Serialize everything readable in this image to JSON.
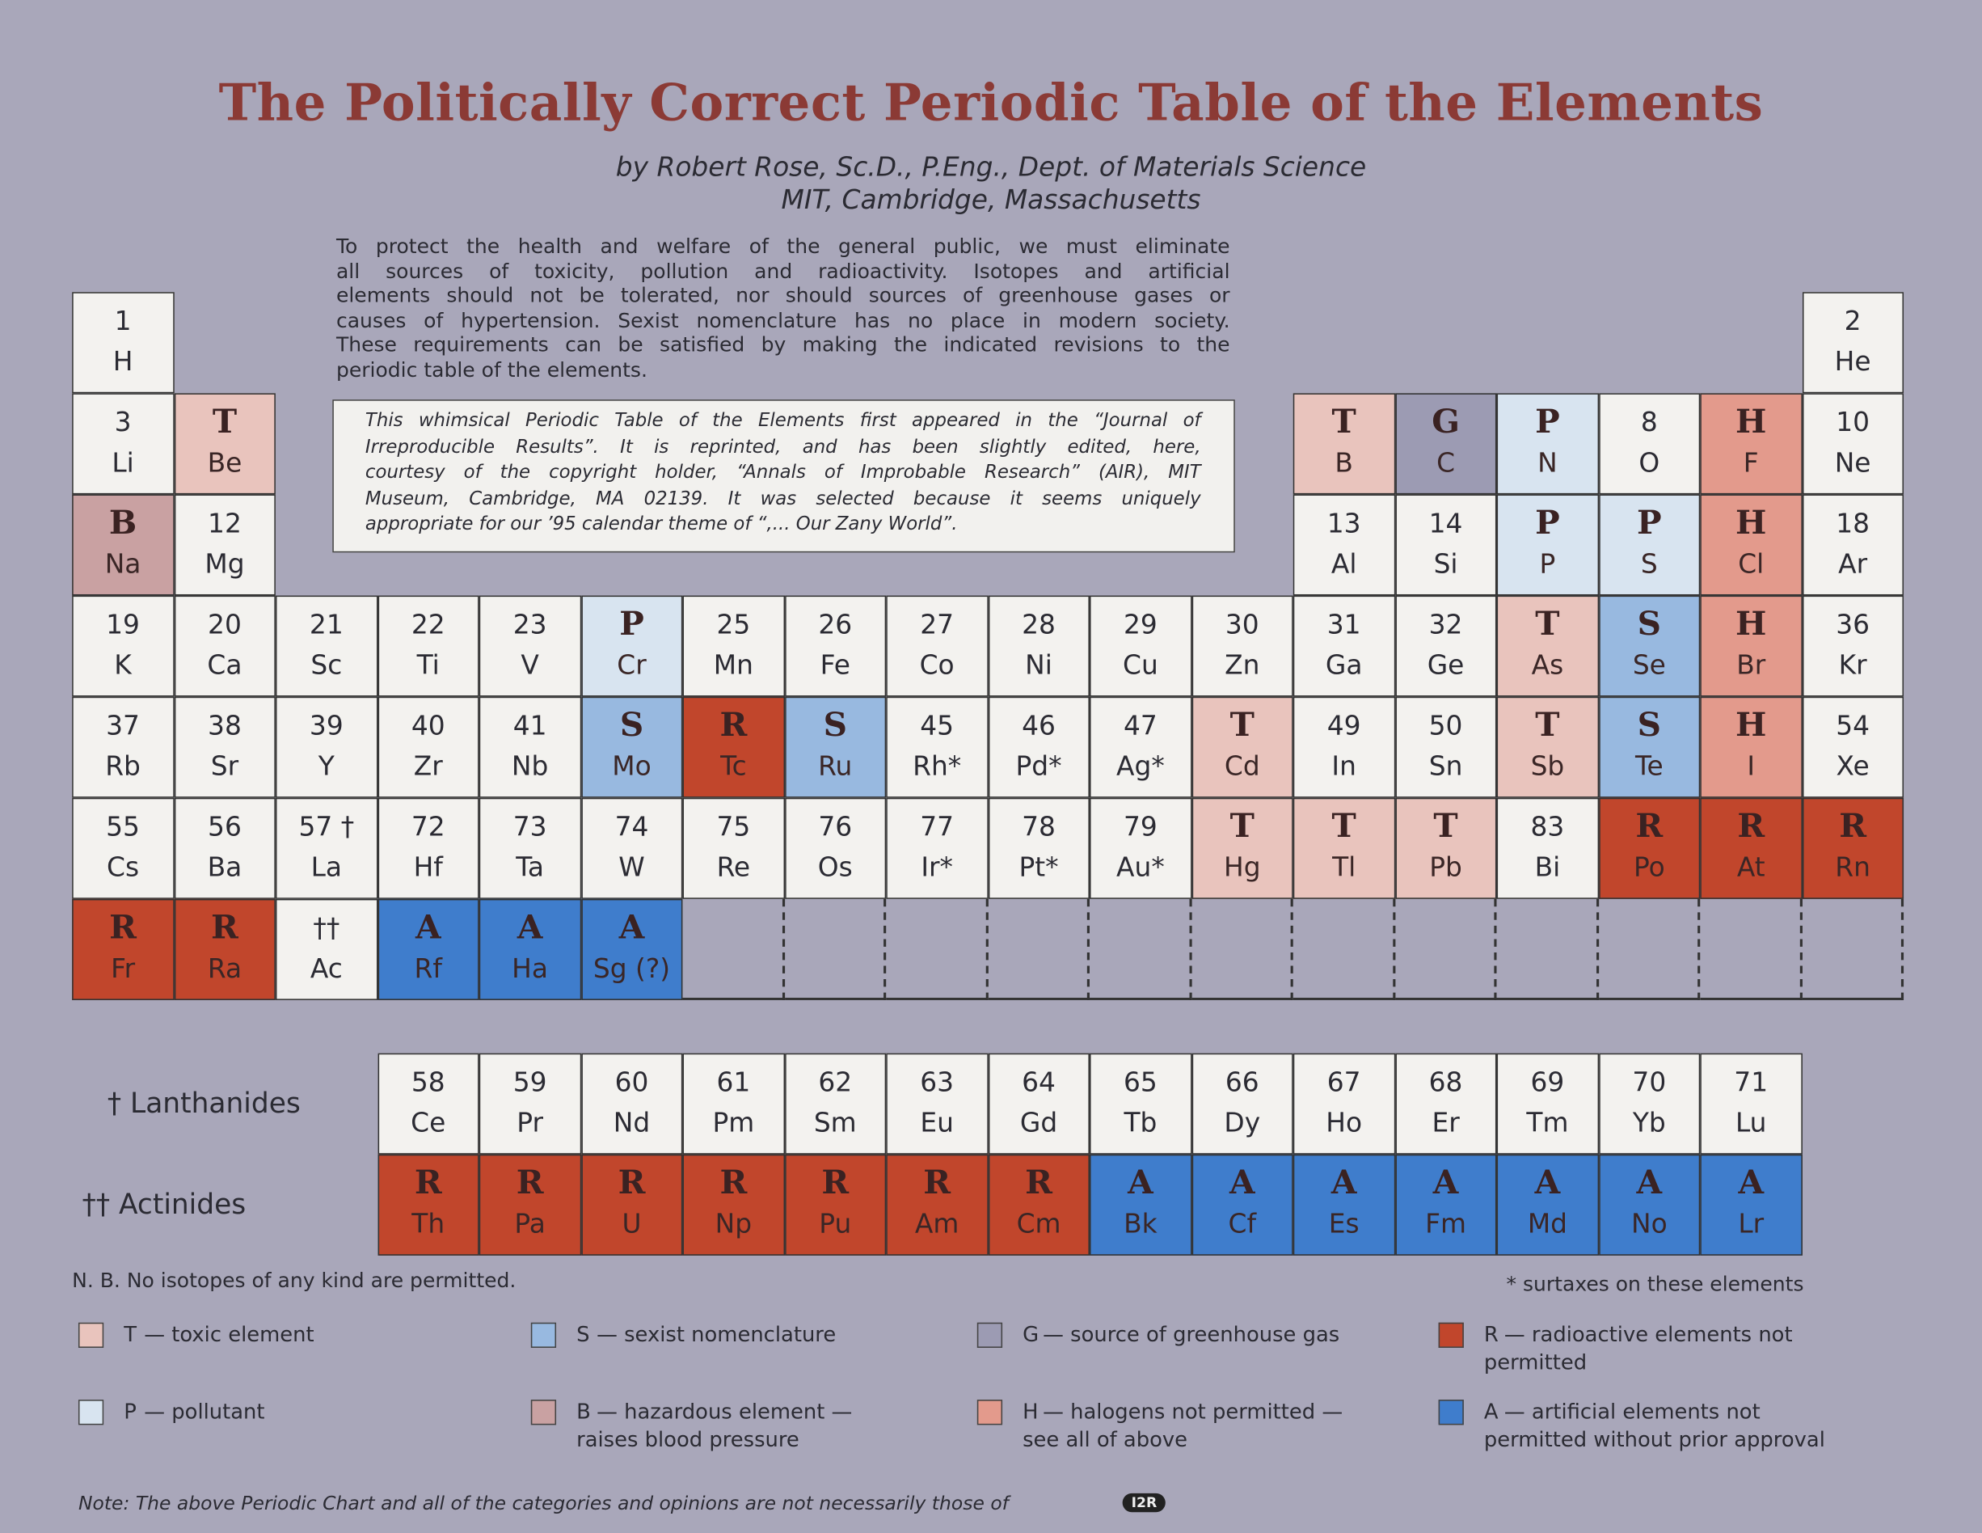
{
  "header": {
    "title": "The Politically Correct Periodic Table of the Elements",
    "byline": [
      "by Robert Rose, Sc.D., P.Eng., Dept. of Materials Science",
      "MIT, Cambridge, Massachusetts"
    ]
  },
  "intro": [
    "To protect the health and welfare of the general public, we must eliminate",
    "all sources of toxicity, pollution and radioactivity. Isotopes and artificial",
    "elements should not be tolerated, nor should sources of greenhouse gases or",
    "causes of hypertension. Sexist nomenclature has no place in modern society.",
    "These requirements can be satisfied by making the indicated revisions to the",
    "periodic table of the elements."
  ],
  "note": [
    "This whimsical Periodic Table of the Elements first appeared in the “Journal of",
    "Irreproducible Results”. It is reprinted, and has been slightly edited, here,",
    "courtesy of the copyright holder, “Annals of Improbable Research” (AIR), MIT",
    "Museum, Cambridge, MA 02139. It was selected because it seems uniquely",
    "appropriate for our ’95 calendar theme of “,... Our Zany World”."
  ],
  "table": {
    "rows": [
      [
        {
          "top": "1",
          "symbol": "H"
        },
        null,
        null,
        null,
        null,
        null,
        null,
        null,
        null,
        null,
        null,
        null,
        null,
        null,
        null,
        null,
        null,
        {
          "top": "2",
          "symbol": "He"
        }
      ],
      [
        {
          "top": "3",
          "symbol": "Li"
        },
        {
          "top": "T",
          "symbol": "Be"
        },
        null,
        null,
        null,
        null,
        null,
        null,
        null,
        null,
        null,
        null,
        {
          "top": "T",
          "symbol": "B"
        },
        {
          "top": "G",
          "symbol": "C"
        },
        {
          "top": "P",
          "symbol": "N"
        },
        {
          "top": "8",
          "symbol": "O"
        },
        {
          "top": "H",
          "symbol": "F"
        },
        {
          "top": "10",
          "symbol": "Ne"
        }
      ],
      [
        {
          "top": "B",
          "symbol": "Na"
        },
        {
          "top": "12",
          "symbol": "Mg"
        },
        null,
        null,
        null,
        null,
        null,
        null,
        null,
        null,
        null,
        null,
        {
          "top": "13",
          "symbol": "Al"
        },
        {
          "top": "14",
          "symbol": "Si"
        },
        {
          "top": "P",
          "symbol": "P"
        },
        {
          "top": "P",
          "symbol": "S"
        },
        {
          "top": "H",
          "symbol": "Cl"
        },
        {
          "top": "18",
          "symbol": "Ar"
        }
      ],
      [
        {
          "top": "19",
          "symbol": "K"
        },
        {
          "top": "20",
          "symbol": "Ca"
        },
        {
          "top": "21",
          "symbol": "Sc"
        },
        {
          "top": "22",
          "symbol": "Ti"
        },
        {
          "top": "23",
          "symbol": "V"
        },
        {
          "top": "P",
          "symbol": "Cr"
        },
        {
          "top": "25",
          "symbol": "Mn"
        },
        {
          "top": "26",
          "symbol": "Fe"
        },
        {
          "top": "27",
          "symbol": "Co"
        },
        {
          "top": "28",
          "symbol": "Ni"
        },
        {
          "top": "29",
          "symbol": "Cu"
        },
        {
          "top": "30",
          "symbol": "Zn"
        },
        {
          "top": "31",
          "symbol": "Ga"
        },
        {
          "top": "32",
          "symbol": "Ge"
        },
        {
          "top": "T",
          "symbol": "As"
        },
        {
          "top": "S",
          "symbol": "Se"
        },
        {
          "top": "H",
          "symbol": "Br"
        },
        {
          "top": "36",
          "symbol": "Kr"
        }
      ],
      [
        {
          "top": "37",
          "symbol": "Rb"
        },
        {
          "top": "38",
          "symbol": "Sr"
        },
        {
          "top": "39",
          "symbol": "Y"
        },
        {
          "top": "40",
          "symbol": "Zr"
        },
        {
          "top": "41",
          "symbol": "Nb"
        },
        {
          "top": "S",
          "symbol": "Mo"
        },
        {
          "top": "R",
          "symbol": "Tc"
        },
        {
          "top": "S",
          "symbol": "Ru"
        },
        {
          "top": "45",
          "symbol": "Rh*"
        },
        {
          "top": "46",
          "symbol": "Pd*"
        },
        {
          "top": "47",
          "symbol": "Ag*"
        },
        {
          "top": "T",
          "symbol": "Cd"
        },
        {
          "top": "49",
          "symbol": "In"
        },
        {
          "top": "50",
          "symbol": "Sn"
        },
        {
          "top": "T",
          "symbol": "Sb"
        },
        {
          "top": "S",
          "symbol": "Te"
        },
        {
          "top": "H",
          "symbol": "I"
        },
        {
          "top": "54",
          "symbol": "Xe"
        }
      ],
      [
        {
          "top": "55",
          "symbol": "Cs"
        },
        {
          "top": "56",
          "symbol": "Ba"
        },
        {
          "top": "57 †",
          "symbol": "La"
        },
        {
          "top": "72",
          "symbol": "Hf"
        },
        {
          "top": "73",
          "symbol": "Ta"
        },
        {
          "top": "74",
          "symbol": "W"
        },
        {
          "top": "75",
          "symbol": "Re"
        },
        {
          "top": "76",
          "symbol": "Os"
        },
        {
          "top": "77",
          "symbol": "Ir*"
        },
        {
          "top": "78",
          "symbol": "Pt*"
        },
        {
          "top": "79",
          "symbol": "Au*"
        },
        {
          "top": "T",
          "symbol": "Hg"
        },
        {
          "top": "T",
          "symbol": "Tl"
        },
        {
          "top": "T",
          "symbol": "Pb"
        },
        {
          "top": "83",
          "symbol": "Bi"
        },
        {
          "top": "R",
          "symbol": "Po"
        },
        {
          "top": "R",
          "symbol": "At"
        },
        {
          "top": "R",
          "symbol": "Rn"
        }
      ],
      [
        {
          "top": "R",
          "symbol": "Fr"
        },
        {
          "top": "R",
          "symbol": "Ra"
        },
        {
          "top": "††",
          "symbol": "Ac"
        },
        {
          "top": "A",
          "symbol": "Rf"
        },
        {
          "top": "A",
          "symbol": "Ha"
        },
        {
          "top": "A",
          "symbol": "Sg (?)"
        },
        null,
        null,
        null,
        null,
        null,
        null,
        null,
        null,
        null,
        null,
        null,
        null
      ]
    ]
  },
  "series": [
    {
      "label": "† Lanthanides",
      "cells": [
        {
          "top": "58",
          "symbol": "Ce"
        },
        {
          "top": "59",
          "symbol": "Pr"
        },
        {
          "top": "60",
          "symbol": "Nd"
        },
        {
          "top": "61",
          "symbol": "Pm"
        },
        {
          "top": "62",
          "symbol": "Sm"
        },
        {
          "top": "63",
          "symbol": "Eu"
        },
        {
          "top": "64",
          "symbol": "Gd"
        },
        {
          "top": "65",
          "symbol": "Tb"
        },
        {
          "top": "66",
          "symbol": "Dy"
        },
        {
          "top": "67",
          "symbol": "Ho"
        },
        {
          "top": "68",
          "symbol": "Er"
        },
        {
          "top": "69",
          "symbol": "Tm"
        },
        {
          "top": "70",
          "symbol": "Yb"
        },
        {
          "top": "71",
          "symbol": "Lu"
        }
      ]
    },
    {
      "label": "†† Actinides",
      "cells": [
        {
          "top": "R",
          "symbol": "Th"
        },
        {
          "top": "R",
          "symbol": "Pa"
        },
        {
          "top": "R",
          "symbol": "U"
        },
        {
          "top": "R",
          "symbol": "Np"
        },
        {
          "top": "R",
          "symbol": "Pu"
        },
        {
          "top": "R",
          "symbol": "Am"
        },
        {
          "top": "R",
          "symbol": "Cm"
        },
        {
          "top": "A",
          "symbol": "Bk"
        },
        {
          "top": "A",
          "symbol": "Cf"
        },
        {
          "top": "A",
          "symbol": "Es"
        },
        {
          "top": "A",
          "symbol": "Fm"
        },
        {
          "top": "A",
          "symbol": "Md"
        },
        {
          "top": "A",
          "symbol": "No"
        },
        {
          "top": "A",
          "symbol": "Lr"
        }
      ]
    }
  ],
  "nb": "N. B. No isotopes of any kind are permitted.",
  "surtax": "* surtaxes on these elements",
  "legend": [
    {
      "letter": "T",
      "desc": [
        "— toxic element"
      ],
      "color": "#e9c4bd"
    },
    {
      "letter": "S",
      "desc": [
        "— sexist nomenclature"
      ],
      "color": "#98b9e0"
    },
    {
      "letter": "G",
      "desc": [
        "— source of greenhouse gas"
      ],
      "color": "#9c9bb3"
    },
    {
      "letter": "R",
      "desc": [
        "— radioactive elements not",
        "permitted"
      ],
      "color": "#c1462c"
    },
    {
      "letter": "P",
      "desc": [
        "— pollutant"
      ],
      "color": "#d8e4f0"
    },
    {
      "letter": "B",
      "desc": [
        "— hazardous element —",
        "raises blood pressure"
      ],
      "color": "#c9a1a2"
    },
    {
      "letter": "H",
      "desc": [
        "— halogens not permitted —",
        "see all of above"
      ],
      "color": "#e39a8c"
    },
    {
      "letter": "A",
      "desc": [
        "— artificial elements not",
        "permitted without prior approval"
      ],
      "color": "#3f7dcc"
    }
  ],
  "footer": {
    "note": "Note: The above Periodic Chart and all of the categories and opinions are not necessarily those of",
    "logo": "I2R"
  }
}
